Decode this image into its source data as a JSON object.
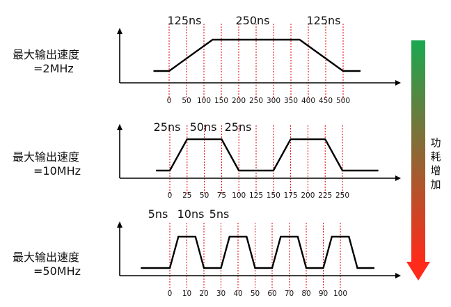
{
  "colors": {
    "waveform": "#000000",
    "guide": "#e00000",
    "gradient_top": "#1aa850",
    "gradient_bottom": "#ff2a1a"
  },
  "side_label": [
    "功",
    "耗",
    "增",
    "加"
  ],
  "rows": [
    {
      "name": "2mhz",
      "label_line1": "最大输出速度",
      "label_line2": "=2MHz",
      "ticks": [
        "0",
        "50",
        "100",
        "150",
        "200",
        "250",
        "300",
        "350",
        "400",
        "450",
        "500"
      ],
      "annotations": [
        "125ns",
        "250ns",
        "125ns"
      ],
      "waveform": {
        "tick_step": 50,
        "points": [
          [
            -45,
            0
          ],
          [
            0,
            0
          ],
          [
            125,
            1
          ],
          [
            375,
            1
          ],
          [
            500,
            0
          ],
          [
            550,
            0
          ]
        ]
      }
    },
    {
      "name": "10mhz",
      "label_line1": "最大输出速度",
      "label_line2": "=10MHz",
      "ticks": [
        "0",
        "25",
        "50",
        "75",
        "100",
        "125",
        "150",
        "175",
        "200",
        "225",
        "250"
      ],
      "annotations": [
        "25ns",
        "50ns",
        "25ns"
      ],
      "waveform": {
        "tick_step": 25,
        "points": [
          [
            -20,
            0
          ],
          [
            0,
            0
          ],
          [
            25,
            1
          ],
          [
            75,
            1
          ],
          [
            100,
            0
          ],
          [
            150,
            0
          ],
          [
            175,
            1
          ],
          [
            225,
            1
          ],
          [
            250,
            0
          ],
          [
            302,
            0
          ]
        ]
      }
    },
    {
      "name": "50mhz",
      "label_line1": "最大输出速度",
      "label_line2": "=50MHz",
      "ticks": [
        "0",
        "10",
        "20",
        "30",
        "40",
        "50",
        "60",
        "70",
        "80",
        "90",
        "100"
      ],
      "annotations": [
        "5ns",
        "10ns",
        "5ns"
      ],
      "waveform": {
        "tick_step": 10,
        "points": [
          [
            -17,
            0
          ],
          [
            0,
            0
          ],
          [
            5,
            1
          ],
          [
            15,
            1
          ],
          [
            20,
            0
          ],
          [
            30,
            0
          ],
          [
            35,
            1
          ],
          [
            45,
            1
          ],
          [
            50,
            0
          ],
          [
            60,
            0
          ],
          [
            65,
            1
          ],
          [
            75,
            1
          ],
          [
            80,
            0
          ],
          [
            90,
            0
          ],
          [
            95,
            1
          ],
          [
            105,
            1
          ],
          [
            110,
            0
          ],
          [
            120,
            0
          ]
        ]
      }
    }
  ]
}
